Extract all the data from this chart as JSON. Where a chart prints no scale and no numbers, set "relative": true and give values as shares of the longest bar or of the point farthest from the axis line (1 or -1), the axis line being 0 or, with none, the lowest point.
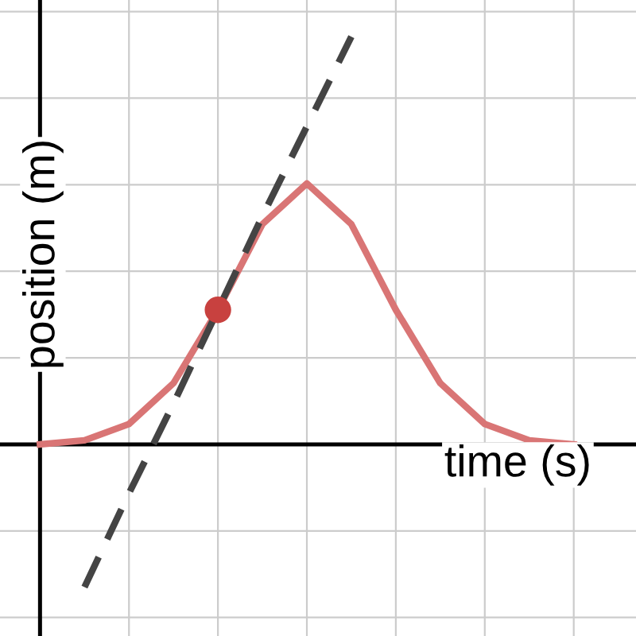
{
  "chart_data": {
    "type": "line",
    "relative": true,
    "xlabel": "time (s)",
    "ylabel": "position (m)",
    "grid": true,
    "legend": false,
    "categories": [
      null,
      null,
      null,
      null,
      null,
      null,
      null,
      null,
      null,
      null,
      null,
      null,
      null
    ],
    "series": [
      {
        "color": "#d97575",
        "line_style": "solid",
        "values": [
          0.0,
          0.01,
          0.05,
          0.15,
          0.33,
          0.54,
          0.64,
          0.54,
          0.33,
          0.15,
          0.05,
          0.01,
          0.0
        ]
      },
      {
        "type": "line",
        "color": "#444444",
        "line_style": "dashed",
        "values": [
          null,
          -0.35,
          -0.12,
          0.1,
          0.33,
          0.56,
          0.78,
          1.0,
          null,
          null,
          null,
          null,
          null
        ]
      },
      {
        "type": "line",
        "color": "#c8413f",
        "marker": "circle",
        "values": [
          null,
          null,
          null,
          null,
          0.33,
          null,
          null,
          null,
          null,
          null,
          null,
          null,
          null
        ]
      }
    ]
  }
}
